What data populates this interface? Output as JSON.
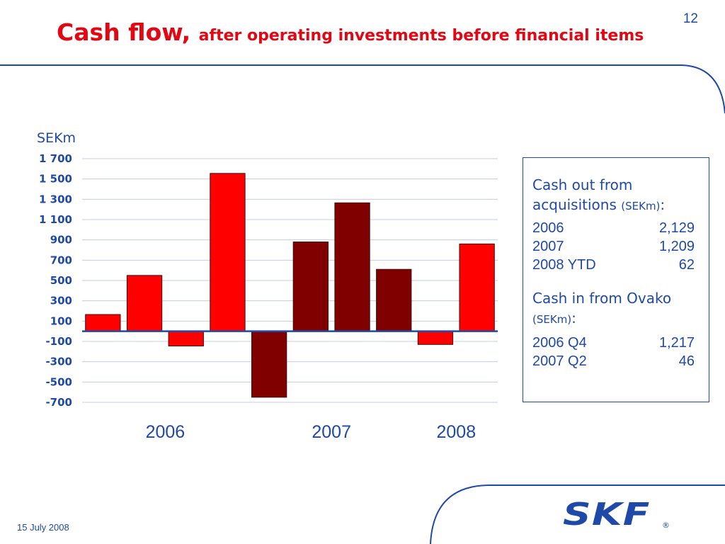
{
  "slide": {
    "page_number": "12",
    "title_main": "Cash flow, ",
    "title_sub": "after operating investments before financial items",
    "footer_date": "15 July 2008",
    "logo_text": "SKF",
    "logo_reg": "®"
  },
  "colors": {
    "title": "#e30613",
    "text": "#1f49a8",
    "bar_red": "#ff0000",
    "bar_dark": "#800000",
    "grid": "#c5cce3",
    "zero_line": "#1f49a8"
  },
  "chart_data": {
    "type": "bar",
    "title": "",
    "xlabel": "",
    "ylabel": "SEKm",
    "ylim": [
      -700,
      1700
    ],
    "yticks": [
      1700,
      1500,
      1300,
      1100,
      900,
      700,
      500,
      300,
      100,
      -100,
      -300,
      -500,
      -700
    ],
    "ytick_labels": [
      "1 700",
      "1 500",
      "1 300",
      "1 100",
      "900",
      "700",
      "500",
      "300",
      "100",
      "-100",
      "-300",
      "-500",
      "-700"
    ],
    "grid": true,
    "legend": "none",
    "year_labels": [
      "2006",
      "2007",
      "2008"
    ],
    "bars": [
      {
        "year": "2006",
        "value": 165,
        "color": "red"
      },
      {
        "year": "2006",
        "value": 550,
        "color": "red"
      },
      {
        "year": "2006",
        "value": -145,
        "color": "red"
      },
      {
        "year": "2006",
        "value": 1555,
        "color": "red"
      },
      {
        "year": "2007",
        "value": -650,
        "color": "dark"
      },
      {
        "year": "2007",
        "value": 880,
        "color": "dark"
      },
      {
        "year": "2007",
        "value": 1265,
        "color": "dark"
      },
      {
        "year": "2007",
        "value": 610,
        "color": "dark"
      },
      {
        "year": "2008",
        "value": -130,
        "color": "red"
      },
      {
        "year": "2008",
        "value": 860,
        "color": "red"
      }
    ]
  },
  "info_box": {
    "acquisitions_heading_line1": "Cash out from",
    "acquisitions_heading_line2": "acquisitions",
    "acquisitions_unit": "(SEKm)",
    "acquisitions_colon": ":",
    "acquisitions_rows": [
      {
        "label": "2006",
        "value": "2,129"
      },
      {
        "label": "2007",
        "value": "1,209"
      },
      {
        "label": "2008 YTD",
        "value": "62"
      }
    ],
    "ovako_heading": "Cash in from Ovako",
    "ovako_unit": "(SEKm)",
    "ovako_colon": ":",
    "ovako_rows": [
      {
        "label": "2006 Q4",
        "value": "1,217"
      },
      {
        "label": "2007 Q2",
        "value": "46"
      }
    ]
  }
}
